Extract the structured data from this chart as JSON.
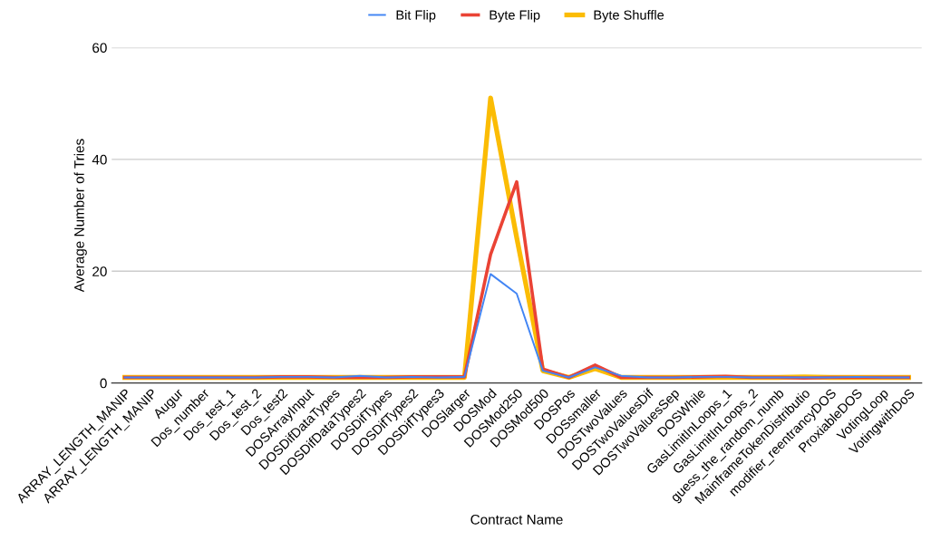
{
  "chart_data": {
    "type": "line",
    "xlabel": "Contract Name",
    "ylabel": "Average Number of Tries",
    "categories": [
      "ARRAY_LENGTH_MANIP",
      "ARRAY_LENGTH_MANIP",
      "Augur",
      "Dos_number",
      "Dos_test_1",
      "Dos_test_2",
      "Dos_test2",
      "DOSArrayInput",
      "DOSDifDataTypes",
      "DOSDifDataTypes2",
      "DOSDifTypes",
      "DOSDifTypes2",
      "DOSDifTypes3",
      "DOSlarger",
      "DOSMod",
      "DOSMod250",
      "DOSMod500",
      "DOSPos",
      "DOSsmaller",
      "DOSTwoValues",
      "DOSTwoValuesDif",
      "DOSTwoValuesSep",
      "DOSWhile",
      "GasLimitInLoops_1",
      "GasLimitInLoops_2",
      "guess_the_random_numb",
      "MainframeTokenDistributio",
      "modifier_reentrancyDOS",
      "ProxiableDOS",
      "VotingLoop",
      "VotingwithDoS"
    ],
    "series": [
      {
        "name": "Bit Flip",
        "color": "#4285f4",
        "values": [
          1,
          1,
          1,
          1,
          1,
          1,
          1.1,
          1.1,
          1,
          1.3,
          1,
          1.1,
          1,
          1.1,
          19.5,
          16,
          2.2,
          1,
          2.8,
          1.3,
          1,
          1,
          1.1,
          1.1,
          1,
          1,
          1,
          1,
          1.1,
          1,
          1
        ]
      },
      {
        "name": "Byte Flip",
        "color": "#ea4335",
        "values": [
          1,
          1,
          1,
          1,
          1,
          1,
          1.1,
          1.1,
          1,
          1,
          1,
          1.1,
          1.1,
          1.1,
          23,
          36,
          2.5,
          1,
          3.2,
          1,
          1,
          1,
          1.1,
          1.2,
          1,
          1,
          0.9,
          1,
          1,
          1,
          1
        ]
      },
      {
        "name": "Byte Shuffle",
        "color": "#fbbc04",
        "values": [
          1,
          1,
          1,
          1,
          1,
          1,
          1,
          1,
          1,
          1,
          1,
          1,
          1,
          1,
          51,
          26,
          2.2,
          1,
          2.6,
          1,
          1,
          1,
          1,
          1,
          1,
          1,
          1.1,
          1,
          1,
          1,
          1
        ]
      }
    ],
    "ylim": [
      0,
      60
    ],
    "yticks": [
      0,
      20,
      40,
      60
    ],
    "grid": "y",
    "legend": "top",
    "marker": "none",
    "line_style": "solid"
  }
}
